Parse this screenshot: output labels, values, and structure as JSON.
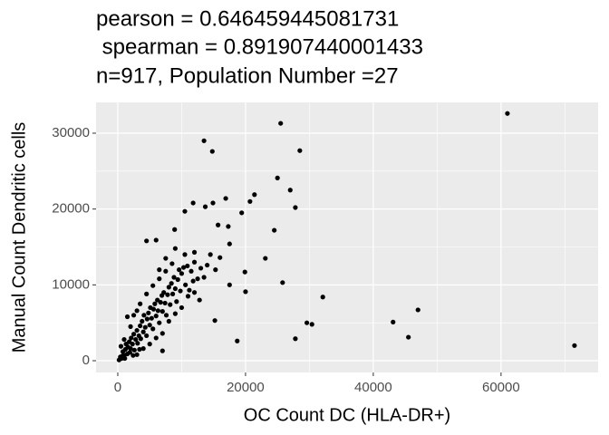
{
  "chart_data": {
    "type": "scatter",
    "title_lines": [
      "pearson = 0.646459445081731",
      " spearman = 0.891907440001433",
      "n=917, Population Number =27"
    ],
    "x_label": "OC Count DC (HLA-DR+)",
    "y_label": "Manual Count Dendritic cells",
    "xlim": [
      -3400,
      75200
    ],
    "ylim": [
      -1550,
      34060
    ],
    "xticks": [
      0,
      20000,
      40000,
      60000
    ],
    "yticks": [
      0,
      10000,
      20000,
      30000
    ],
    "x_minor_ticks": [
      10000,
      30000,
      50000,
      70000
    ],
    "y_minor_ticks": [
      5000,
      15000,
      25000
    ],
    "grid": true,
    "color": "#000000",
    "x": [
      200,
      400,
      600,
      800,
      1000,
      1200,
      1300,
      1500,
      1600,
      1800,
      2000,
      2100,
      2300,
      2500,
      2600,
      2800,
      3000,
      3100,
      3300,
      3500,
      3600,
      3800,
      4000,
      4100,
      4300,
      4500,
      4600,
      4800,
      5000,
      5100,
      5300,
      5500,
      5600,
      5800,
      6000,
      6200,
      6300,
      6500,
      6700,
      6900,
      7000,
      7200,
      7400,
      7600,
      7800,
      8000,
      8200,
      8400,
      8600,
      8800,
      9000,
      9200,
      9400,
      9600,
      9800,
      10000,
      10300,
      10600,
      10900,
      11200,
      11500,
      12000,
      12500,
      13000,
      13500,
      14000,
      1500,
      2500,
      3000,
      2000,
      1000,
      500,
      3500,
      4500,
      5500,
      6500,
      7500,
      7000,
      8000,
      9000,
      5000,
      6000,
      4000,
      3000,
      10000,
      11000,
      12000,
      7500,
      9000,
      6500,
      700,
      1100,
      1900,
      2400,
      3400,
      8500,
      10500,
      11800,
      12800,
      61000,
      71500,
      25500,
      13500,
      14800,
      28500,
      25000,
      27000,
      27800,
      21400,
      20700,
      19400,
      24500,
      23100,
      25800,
      19900,
      20000,
      32100,
      29600,
      30400,
      27800,
      18700,
      43100,
      47000,
      45500,
      15200,
      7000,
      16900,
      14900,
      11800,
      10500,
      13700,
      15700,
      17300,
      17500,
      8900,
      4500,
      6000,
      14500,
      15300,
      16000,
      17500,
      12000
    ],
    "values": [
      100,
      500,
      300,
      1200,
      700,
      1500,
      2200,
      900,
      1800,
      2500,
      1600,
      3000,
      2200,
      3500,
      1400,
      2800,
      4000,
      2300,
      3300,
      4600,
      2900,
      5200,
      3800,
      6000,
      4400,
      3300,
      5500,
      6300,
      4700,
      7000,
      5600,
      4200,
      6800,
      7500,
      5900,
      8000,
      6600,
      5000,
      7700,
      8600,
      6500,
      9000,
      7600,
      6000,
      8700,
      9700,
      7400,
      10200,
      8800,
      11000,
      9500,
      7800,
      10700,
      12000,
      9200,
      11500,
      12300,
      10000,
      12500,
      9300,
      11800,
      13000,
      10800,
      12200,
      11000,
      12600,
      5800,
      6000,
      6600,
      4500,
      2800,
      1900,
      7500,
      8800,
      9900,
      10800,
      11800,
      3600,
      5200,
      6200,
      2200,
      3000,
      1600,
      800,
      7000,
      8500,
      9000,
      13500,
      14800,
      12000,
      600,
      300,
      1100,
      700,
      1500,
      12800,
      14000,
      10500,
      8000,
      32600,
      2000,
      31300,
      29000,
      27600,
      27700,
      24100,
      22500,
      20200,
      21900,
      21000,
      19500,
      17200,
      13500,
      10300,
      11700,
      9100,
      8400,
      5000,
      4800,
      2900,
      2600,
      5100,
      6700,
      3100,
      5300,
      1300,
      21400,
      20800,
      20800,
      19700,
      20300,
      17900,
      17700,
      15400,
      17300,
      15800,
      15900,
      14000,
      12000,
      13600,
      10000,
      14300
    ]
  }
}
